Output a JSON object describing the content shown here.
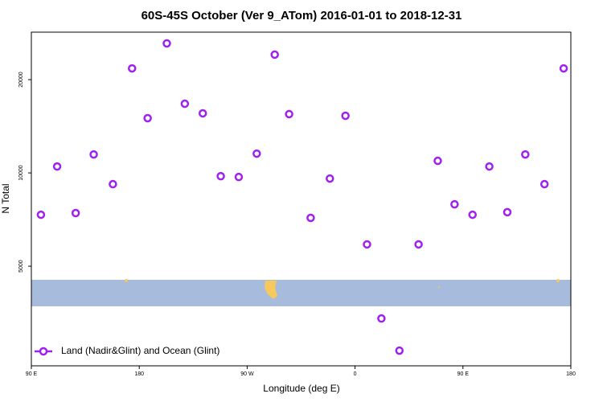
{
  "chart_data": {
    "type": "scatter",
    "title": "60S-45S October (Ver 9_ATom)   2016-01-01 to 2018-12-31",
    "x_label": "Longitude (deg E)",
    "y_label": "N Total",
    "log_y": true,
    "legend_position": "bottom-left",
    "xlim": [
      90,
      540
    ],
    "xticks": [
      {
        "value": 90,
        "label": "90 E"
      },
      {
        "value": 180,
        "label": "180"
      },
      {
        "value": 270,
        "label": "90 W"
      },
      {
        "value": 360,
        "label": "0"
      },
      {
        "value": 450,
        "label": "90 E"
      },
      {
        "value": 540,
        "label": "180"
      }
    ],
    "ylim": [
      2385,
      28460
    ],
    "yticks": [
      5000,
      10000,
      20000
    ],
    "series": [
      {
        "name": "Land (Nadir&Glint) and Ocean (Glint)",
        "color": "#a020f0",
        "x": [
          98,
          111.5,
          127,
          142,
          158,
          174,
          187,
          203,
          218,
          233,
          248,
          263,
          278,
          293,
          305,
          323,
          339,
          352,
          370,
          382,
          397,
          413,
          429,
          443,
          458,
          472,
          487,
          502,
          518,
          534
        ],
        "values": [
          7330,
          10490,
          7420,
          11470,
          9200,
          21740,
          15020,
          26180,
          16720,
          15570,
          9760,
          9700,
          11540,
          24090,
          15480,
          7160,
          9590,
          15290,
          5880,
          3390,
          2670,
          5880,
          10940,
          7920,
          7330,
          10490,
          7470,
          11470,
          9200,
          21740
        ]
      }
    ]
  }
}
